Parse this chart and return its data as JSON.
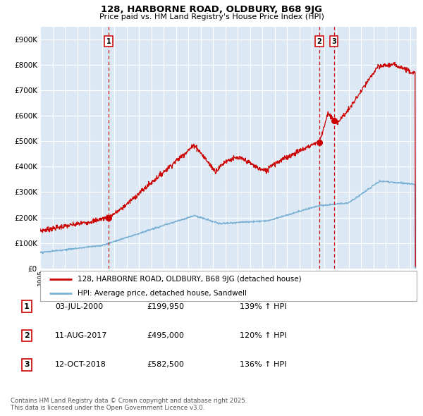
{
  "title": "128, HARBORNE ROAD, OLDBURY, B68 9JG",
  "subtitle": "Price paid vs. HM Land Registry's House Price Index (HPI)",
  "bg_color": "#dce9f5",
  "red_line_color": "#cc0000",
  "blue_line_color": "#7ab0d4",
  "vline_color": "#cc0000",
  "grid_color": "#ffffff",
  "sale1_date": 2000.54,
  "sale1_price": 199950,
  "sale2_date": 2017.62,
  "sale2_price": 495000,
  "sale3_date": 2018.79,
  "sale3_price": 582500,
  "xmin": 1995,
  "xmax": 2025.5,
  "ymin": 0,
  "ymax": 950000,
  "yticks": [
    0,
    100000,
    200000,
    300000,
    400000,
    500000,
    600000,
    700000,
    800000,
    900000
  ],
  "ytick_labels": [
    "£0",
    "£100K",
    "£200K",
    "£300K",
    "£400K",
    "£500K",
    "£600K",
    "£700K",
    "£800K",
    "£900K"
  ],
  "legend_line1": "128, HARBORNE ROAD, OLDBURY, B68 9JG (detached house)",
  "legend_line2": "HPI: Average price, detached house, Sandwell",
  "table_row1": [
    "1",
    "03-JUL-2000",
    "£199,950",
    "139% ↑ HPI"
  ],
  "table_row2": [
    "2",
    "11-AUG-2017",
    "£495,000",
    "120% ↑ HPI"
  ],
  "table_row3": [
    "3",
    "12-OCT-2018",
    "£582,500",
    "136% ↑ HPI"
  ],
  "footer": "Contains HM Land Registry data © Crown copyright and database right 2025.\nThis data is licensed under the Open Government Licence v3.0."
}
